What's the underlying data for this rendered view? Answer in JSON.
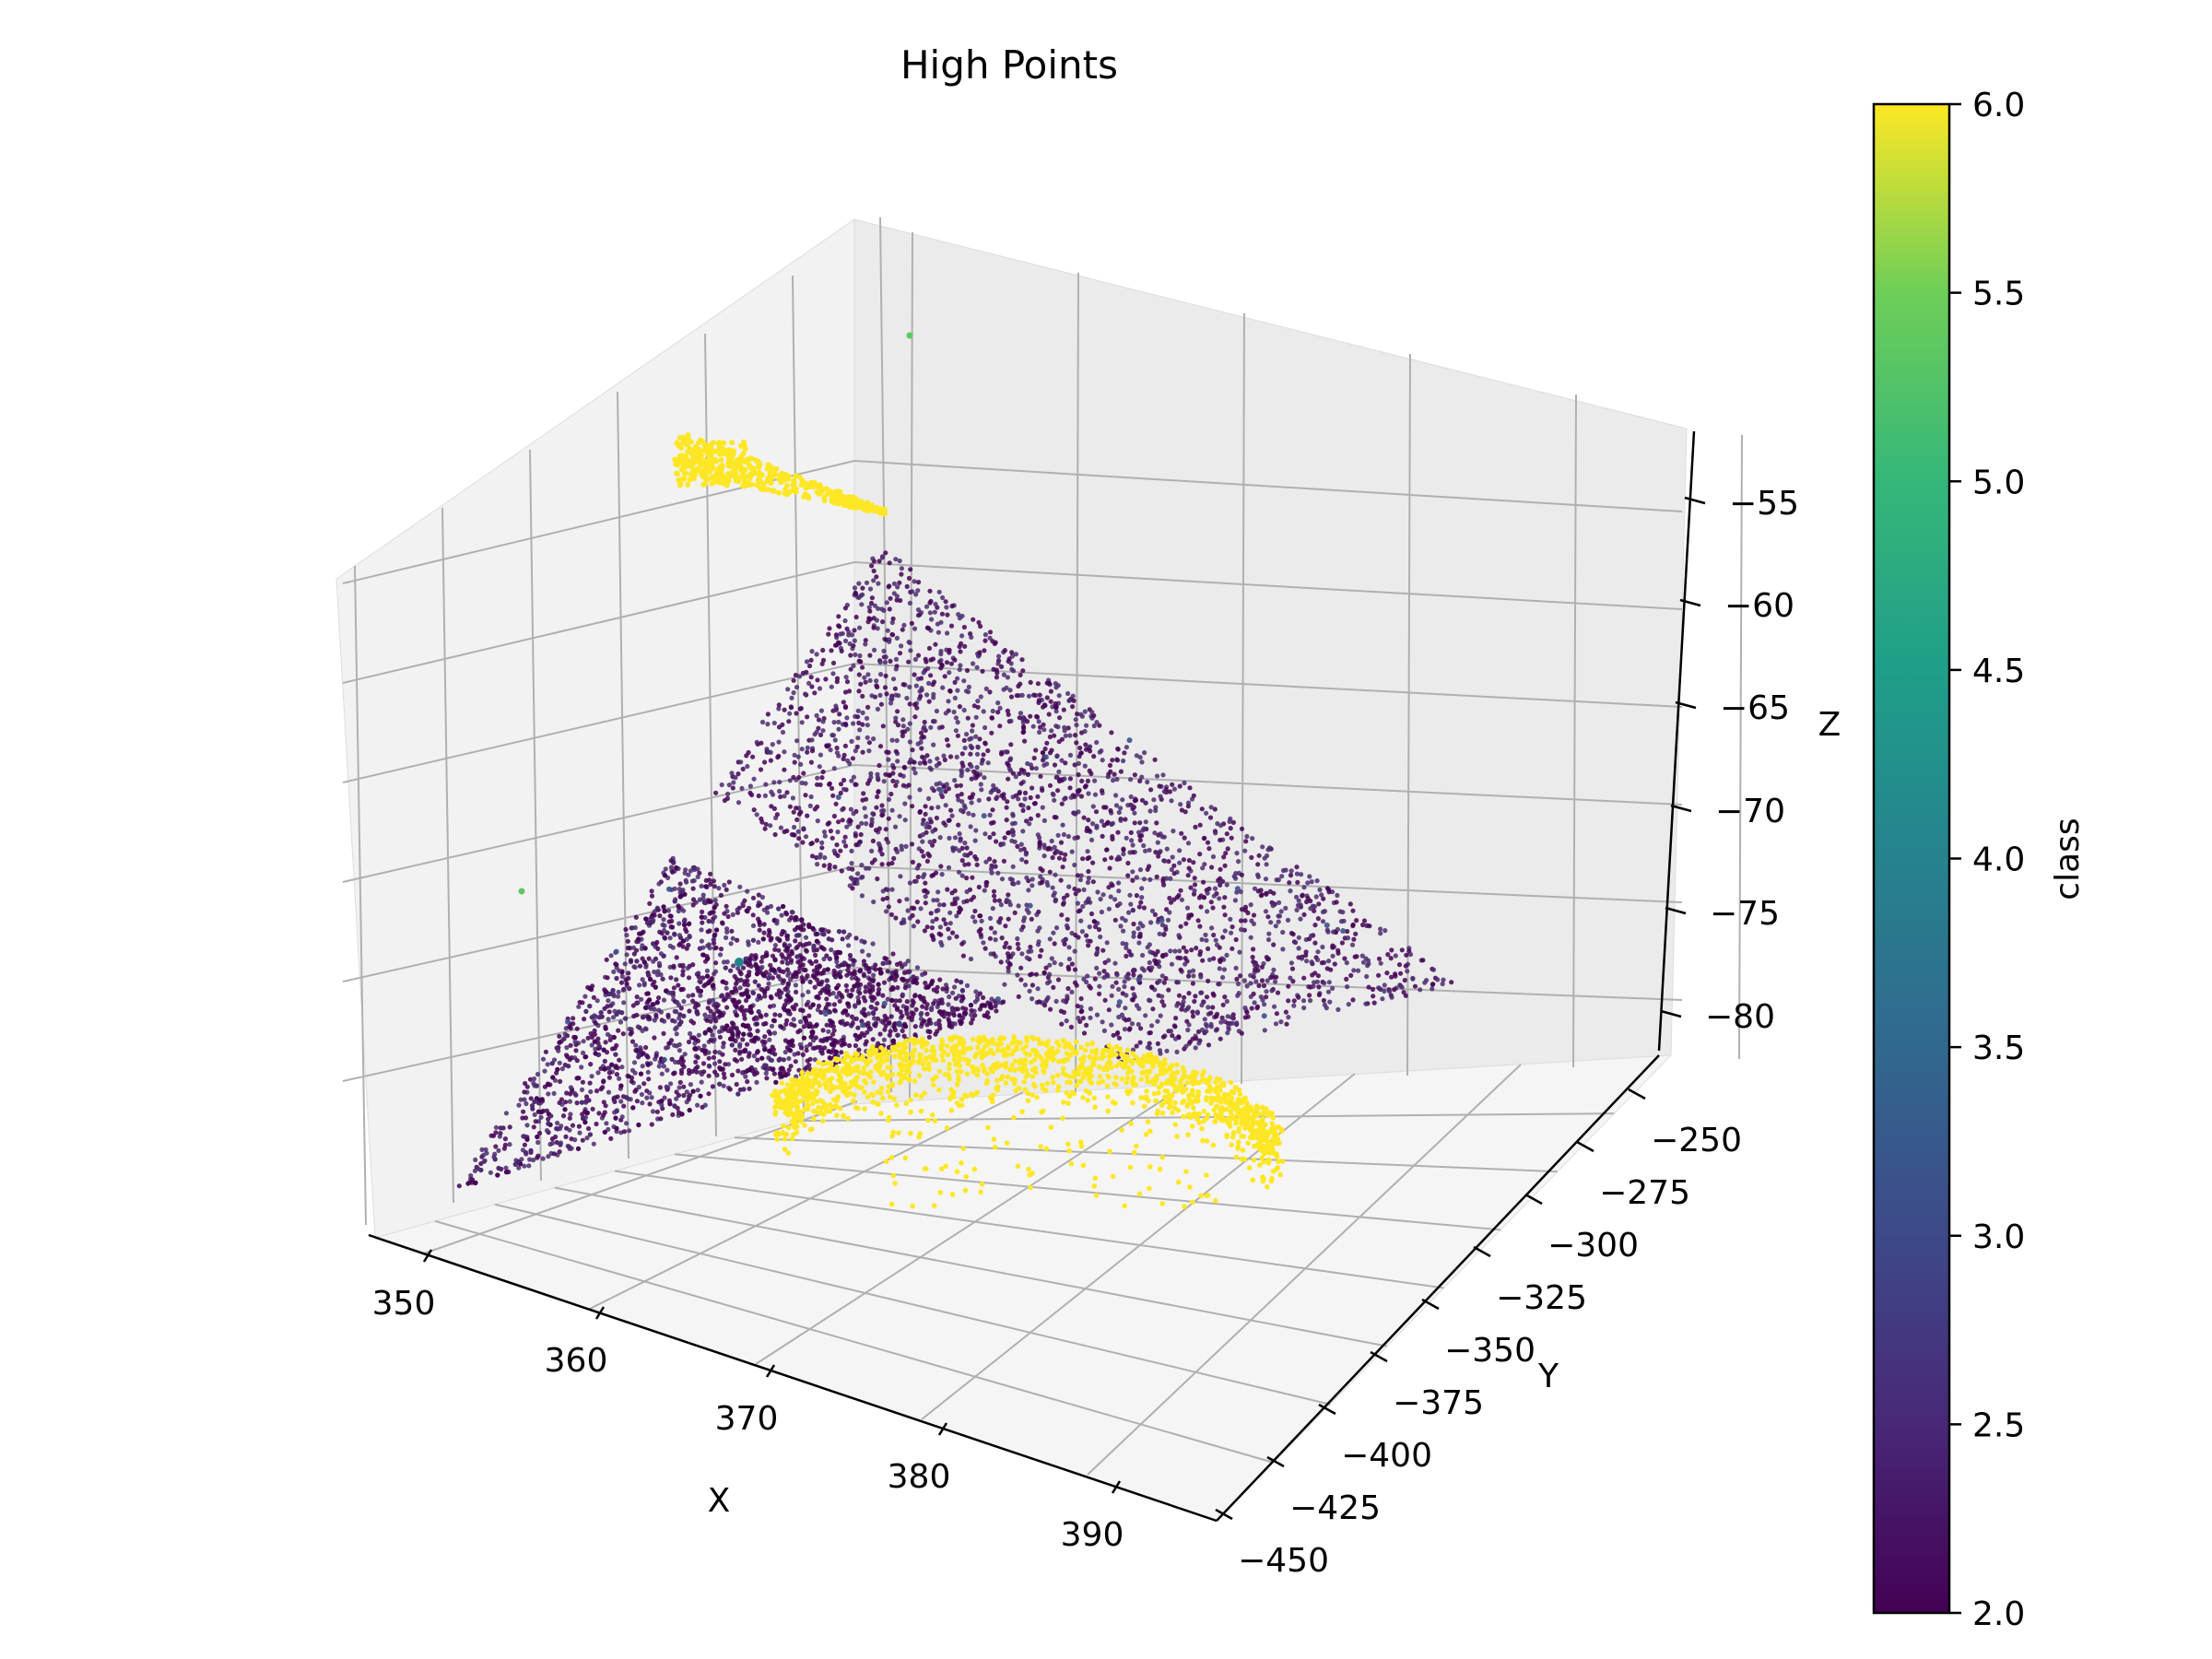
{
  "chart_data": {
    "type": "scatter",
    "title": "High Points",
    "xlabel": "X",
    "ylabel": "Y",
    "zlabel": "Z",
    "xlim": [
      347,
      394
    ],
    "ylim": [
      -455,
      -240
    ],
    "zlim": [
      -82,
      -52
    ],
    "x_ticks": [
      "350",
      "360",
      "370",
      "380",
      "390"
    ],
    "y_ticks": [
      "−250",
      "−275",
      "−300",
      "−325",
      "−350",
      "−375",
      "−400",
      "−425",
      "−450"
    ],
    "z_ticks": [
      "−55",
      "−60",
      "−65",
      "−70",
      "−75",
      "−80"
    ],
    "colorbar": {
      "label": "class",
      "range": [
        2.0,
        6.0
      ],
      "colormap": "viridis",
      "ticks": [
        "2.0",
        "2.5",
        "3.0",
        "3.5",
        "4.0",
        "4.5",
        "5.0",
        "5.5",
        "6.0"
      ]
    },
    "grid": true,
    "series": [
      {
        "value": 2.0,
        "color": "#440154",
        "description_region": "upper sloped plane",
        "x_range": [
          352,
          392
        ],
        "y_range": [
          -300,
          -260
        ],
        "z_range": [
          -80,
          -57
        ],
        "approx_points": 9000
      },
      {
        "value": 2.0,
        "color": "#440154",
        "description_region": "lower sloped plane",
        "x_range": [
          348,
          372
        ],
        "y_range": [
          -440,
          -340
        ],
        "z_range": [
          -80,
          -70
        ],
        "approx_points": 6000
      },
      {
        "value": 6.0,
        "color": "#fde725",
        "description_region": "arc near lower plane",
        "x_range": [
          368,
          384
        ],
        "y_range": [
          -330,
          -270
        ],
        "z_range": [
          -82,
          -72
        ],
        "approx_points": 2500
      },
      {
        "value": 6.0,
        "color": "#fde725",
        "description_region": "small cluster at top",
        "x_range": [
          352,
          360
        ],
        "y_range": [
          -270,
          -250
        ],
        "z_range": [
          -56,
          -53
        ],
        "approx_points": 500
      },
      {
        "value": 5.0,
        "color": "#5ec962",
        "description_region": "isolated outliers",
        "approx_points": 2
      },
      {
        "value": 3.0,
        "color": "#3b528b",
        "description_region": "sparse points on planes",
        "approx_points": 60
      }
    ]
  }
}
